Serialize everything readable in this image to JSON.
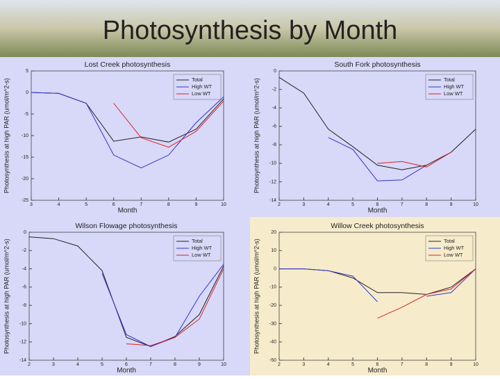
{
  "title": "Photosynthesis by Month",
  "chart_data": [
    {
      "type": "line",
      "title": "Lost Creek photosynthesis",
      "x_label": "Month",
      "y_label": "Photosynthesis at high PAR (umol/m^2-s)",
      "x": [
        3,
        4,
        5,
        6,
        7,
        8,
        9,
        10
      ],
      "xlim": [
        3,
        10
      ],
      "xticks": [
        3,
        4,
        5,
        6,
        7,
        8,
        9,
        10
      ],
      "ylim": [
        -25,
        5
      ],
      "yticks": [
        5,
        0,
        -5,
        -10,
        -15,
        -20,
        -25
      ],
      "legend": "upper right",
      "background": "#d8d8f8",
      "series": [
        {
          "name": "Total",
          "color": "#222222",
          "values": [
            0,
            -0.2,
            -2.5,
            -11.3,
            -10.3,
            -11.5,
            -8.5,
            -1.5
          ]
        },
        {
          "name": "High WT",
          "color": "#3333cc",
          "values": [
            0,
            -0.2,
            -2.5,
            -14.5,
            -17.5,
            -14.5,
            -7,
            -1
          ]
        },
        {
          "name": "Low WT",
          "color": "#dd2222",
          "values": [
            null,
            null,
            null,
            -2.5,
            -10.5,
            -12.7,
            -9,
            -2
          ]
        }
      ]
    },
    {
      "type": "line",
      "title": "South Fork photosynthesis",
      "x_label": "Month",
      "y_label": "Photosynthesis at high PAR (umol/m^2-s)",
      "x": [
        2,
        3,
        4,
        5,
        6,
        7,
        8,
        9,
        10
      ],
      "xlim": [
        2,
        10
      ],
      "xticks": [
        2,
        3,
        4,
        5,
        6,
        7,
        8,
        9,
        10
      ],
      "ylim": [
        -14,
        0
      ],
      "yticks": [
        0,
        -2,
        -4,
        -6,
        -8,
        -10,
        -12,
        -14
      ],
      "legend": "upper right",
      "background": "#d8d8f8",
      "series": [
        {
          "name": "Total",
          "color": "#222222",
          "values": [
            -0.7,
            -2.4,
            -6.3,
            -8.2,
            -10.2,
            -10.7,
            -10.2,
            -8.8,
            -6.3
          ]
        },
        {
          "name": "High WT",
          "color": "#3333cc",
          "values": [
            null,
            null,
            -7.2,
            -8.5,
            -11.9,
            -11.8,
            -10.2,
            null,
            null
          ]
        },
        {
          "name": "Low WT",
          "color": "#dd2222",
          "values": [
            null,
            null,
            null,
            null,
            -10,
            -9.8,
            -10.4,
            -8.8,
            null
          ]
        }
      ]
    },
    {
      "type": "line",
      "title": "Wilson Flowage photosynthesis",
      "x_label": "Month",
      "y_label": "Photosynthesis at high PAR (umol/m^2-s)",
      "x": [
        2,
        3,
        4,
        5,
        6,
        7,
        8,
        9,
        10
      ],
      "xlim": [
        2,
        10
      ],
      "xticks": [
        2,
        3,
        4,
        5,
        6,
        7,
        8,
        9,
        10
      ],
      "ylim": [
        -14,
        0
      ],
      "yticks": [
        0,
        -2,
        -4,
        -6,
        -8,
        -10,
        -12,
        -14
      ],
      "legend": "upper right",
      "background": "#d8d8f8",
      "series": [
        {
          "name": "Total",
          "color": "#222222",
          "values": [
            -0.5,
            -0.7,
            -1.5,
            -4.2,
            -11.5,
            -12.5,
            -11.4,
            -9,
            -3.7
          ]
        },
        {
          "name": "High WT",
          "color": "#3333cc",
          "values": [
            null,
            null,
            null,
            -4.5,
            -11.2,
            -12.5,
            -11.5,
            -7,
            -3.5
          ]
        },
        {
          "name": "Low WT",
          "color": "#dd2222",
          "values": [
            null,
            null,
            null,
            null,
            -12.2,
            -12.4,
            -11.5,
            -9.5,
            -4
          ]
        }
      ]
    },
    {
      "type": "line",
      "title": "Willow Creek photosynthesis",
      "x_label": "Month",
      "y_label": "Photosynthesis at high PAR (umol/m^2-s)",
      "x": [
        2,
        3,
        4,
        5,
        6,
        7,
        8,
        9,
        10
      ],
      "xlim": [
        2,
        10
      ],
      "xticks": [
        2,
        3,
        4,
        5,
        6,
        7,
        8,
        9,
        10
      ],
      "ylim": [
        -50,
        20
      ],
      "yticks": [
        20,
        10,
        0,
        -10,
        -20,
        -30,
        -40,
        -50
      ],
      "legend": "upper right",
      "background": "#f6eccc",
      "series": [
        {
          "name": "Total",
          "color": "#222222",
          "values": [
            0,
            0,
            -1,
            -5,
            -13,
            -13,
            -14,
            -10,
            0
          ]
        },
        {
          "name": "High WT",
          "color": "#3333cc",
          "values": [
            0,
            0,
            -1,
            -4,
            -18,
            null,
            -15,
            -13,
            0
          ]
        },
        {
          "name": "Low WT",
          "color": "#dd2222",
          "values": [
            null,
            null,
            null,
            null,
            -27,
            -21,
            -14,
            -11,
            0
          ]
        }
      ]
    }
  ]
}
